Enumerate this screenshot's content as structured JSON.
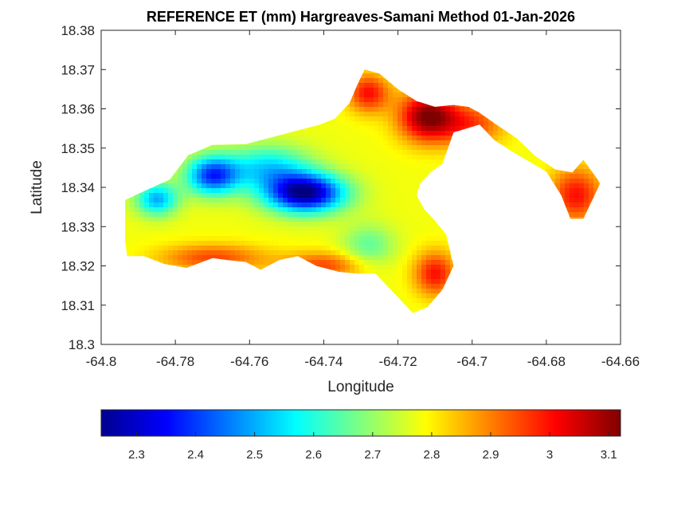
{
  "chart_data": {
    "type": "heatmap",
    "title": "REFERENCE ET (mm) Hargreaves-Samani Method  01-Jan-2026",
    "xlabel": "Longitude",
    "ylabel": "Latitude",
    "xlim": [
      -64.8,
      -64.66
    ],
    "ylim": [
      18.3,
      18.38
    ],
    "xticks": [
      -64.8,
      -64.78,
      -64.76,
      -64.74,
      -64.72,
      -64.7,
      -64.68,
      -64.66
    ],
    "xtick_labels": [
      "-64.8",
      "-64.78",
      "-64.76",
      "-64.74",
      "-64.72",
      "-64.7",
      "-64.68",
      "-64.66"
    ],
    "yticks": [
      18.3,
      18.31,
      18.32,
      18.33,
      18.34,
      18.35,
      18.36,
      18.37,
      18.38
    ],
    "ytick_labels": [
      "18.3",
      "18.31",
      "18.32",
      "18.33",
      "18.34",
      "18.35",
      "18.36",
      "18.37",
      "18.38"
    ],
    "grid": false,
    "colormap": "jet",
    "colorbar": {
      "placement": "bottom",
      "range": [
        2.24,
        3.12
      ],
      "ticks": [
        2.3,
        2.4,
        2.5,
        2.6,
        2.7,
        2.8,
        2.9,
        3.0,
        3.1
      ],
      "tick_labels": [
        "2.3",
        "2.4",
        "2.5",
        "2.6",
        "2.7",
        "2.8",
        "2.9",
        "3",
        "3.1"
      ]
    },
    "island_outline_lonlat": [
      [
        -64.7935,
        18.3368
      ],
      [
        -64.7885,
        18.339
      ],
      [
        -64.7815,
        18.342
      ],
      [
        -64.7765,
        18.3482
      ],
      [
        -64.77,
        18.3508
      ],
      [
        -64.761,
        18.351
      ],
      [
        -64.751,
        18.3535
      ],
      [
        -64.741,
        18.356
      ],
      [
        -64.737,
        18.3575
      ],
      [
        -64.733,
        18.3615
      ],
      [
        -64.731,
        18.366
      ],
      [
        -64.729,
        18.37
      ],
      [
        -64.725,
        18.369
      ],
      [
        -64.72,
        18.365
      ],
      [
        -64.715,
        18.362
      ],
      [
        -64.71,
        18.3605
      ],
      [
        -64.705,
        18.361
      ],
      [
        -64.701,
        18.3605
      ],
      [
        -64.698,
        18.359
      ],
      [
        -64.6935,
        18.356
      ],
      [
        -64.688,
        18.3525
      ],
      [
        -64.683,
        18.348
      ],
      [
        -64.6775,
        18.3445
      ],
      [
        -64.673,
        18.3438
      ],
      [
        -64.67,
        18.347
      ],
      [
        -64.6665,
        18.3425
      ],
      [
        -64.6655,
        18.341
      ],
      [
        -64.67,
        18.332
      ],
      [
        -64.6735,
        18.332
      ],
      [
        -64.676,
        18.338
      ],
      [
        -64.68,
        18.344
      ],
      [
        -64.689,
        18.349
      ],
      [
        -64.694,
        18.352
      ],
      [
        -64.698,
        18.356
      ],
      [
        -64.705,
        18.354
      ],
      [
        -64.708,
        18.346
      ],
      [
        -64.711,
        18.344
      ],
      [
        -64.714,
        18.341
      ],
      [
        -64.715,
        18.338
      ],
      [
        -64.713,
        18.3345
      ],
      [
        -64.71,
        18.3315
      ],
      [
        -64.707,
        18.328
      ],
      [
        -64.705,
        18.32
      ],
      [
        -64.708,
        18.314
      ],
      [
        -64.712,
        18.3095
      ],
      [
        -64.716,
        18.308
      ],
      [
        -64.719,
        18.311
      ],
      [
        -64.723,
        18.315
      ],
      [
        -64.726,
        18.318
      ],
      [
        -64.731,
        18.318
      ],
      [
        -64.736,
        18.3185
      ],
      [
        -64.742,
        18.32
      ],
      [
        -64.747,
        18.3225
      ],
      [
        -64.752,
        18.3215
      ],
      [
        -64.757,
        18.319
      ],
      [
        -64.761,
        18.321
      ],
      [
        -64.766,
        18.3215
      ],
      [
        -64.77,
        18.322
      ],
      [
        -64.777,
        18.3195
      ],
      [
        -64.783,
        18.3205
      ],
      [
        -64.7885,
        18.3225
      ],
      [
        -64.793,
        18.3225
      ],
      [
        -64.7935,
        18.326
      ],
      [
        -64.7935,
        18.3368
      ]
    ],
    "value_field_anchors": [
      {
        "lon": -64.745,
        "lat": 18.3385,
        "et": 2.25,
        "sigma_lon": 0.0075,
        "sigma_lat": 0.0035
      },
      {
        "lon": -64.77,
        "lat": 18.343,
        "et": 2.4,
        "sigma_lon": 0.005,
        "sigma_lat": 0.0035
      },
      {
        "lon": -64.785,
        "lat": 18.337,
        "et": 2.5,
        "sigma_lon": 0.004,
        "sigma_lat": 0.003
      },
      {
        "lon": -64.755,
        "lat": 18.345,
        "et": 2.55,
        "sigma_lon": 0.008,
        "sigma_lat": 0.004
      },
      {
        "lon": -64.728,
        "lat": 18.325,
        "et": 2.65,
        "sigma_lon": 0.005,
        "sigma_lat": 0.004
      },
      {
        "lon": -64.712,
        "lat": 18.358,
        "et": 3.12,
        "sigma_lon": 0.0055,
        "sigma_lat": 0.0045
      },
      {
        "lon": -64.728,
        "lat": 18.364,
        "et": 3.0,
        "sigma_lon": 0.004,
        "sigma_lat": 0.0035
      },
      {
        "lon": -64.7,
        "lat": 18.356,
        "et": 2.95,
        "sigma_lon": 0.006,
        "sigma_lat": 0.004
      },
      {
        "lon": -64.672,
        "lat": 18.338,
        "et": 3.0,
        "sigma_lon": 0.005,
        "sigma_lat": 0.005
      },
      {
        "lon": -64.77,
        "lat": 18.322,
        "et": 2.95,
        "sigma_lon": 0.01,
        "sigma_lat": 0.0025
      },
      {
        "lon": -64.74,
        "lat": 18.32,
        "et": 2.95,
        "sigma_lon": 0.008,
        "sigma_lat": 0.0025
      },
      {
        "lon": -64.71,
        "lat": 18.318,
        "et": 3.0,
        "sigma_lon": 0.004,
        "sigma_lat": 0.004
      }
    ],
    "value_field_baseline": 2.78
  }
}
